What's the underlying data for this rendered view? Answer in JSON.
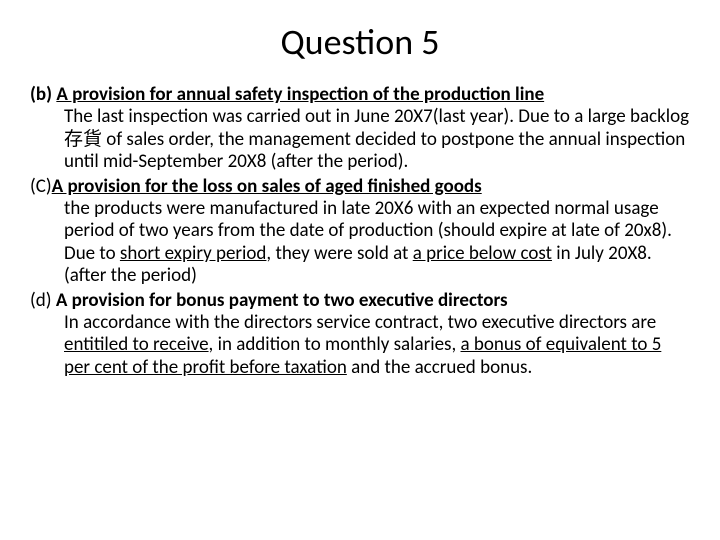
{
  "title": "Question 5",
  "items": {
    "b": {
      "label": "(b) ",
      "heading": "A provision for annual safety inspection of the production line",
      "rest1": "The last inspection was carried out in June 20X7(last year). Due to a large backlog存貨 of sales order, the management decided to postpone the annual inspection until mid-September 20X8 (after the period)."
    },
    "c": {
      "label": "(C)",
      "heading": "A provision for the loss on sales of aged finished goods",
      "rest1": "the products were manufactured in late 20X6 with an expected normal usage period of two years from the date of production (should expire at late of 20x8). Due to ",
      "u1": "short expiry period",
      "rest2": ", they were sold at ",
      "u2": "a price below cost",
      "rest3": " in July 20X8. (after the period)"
    },
    "d": {
      "label": "(d) ",
      "heading": "A provision for bonus payment to two executive directors",
      "rest1": "In accordance with the directors service contract, two executive directors are ",
      "u1": "entitiled to receive",
      "rest2": ", in addition to monthly salaries, ",
      "u2": "a bonus of equivalent to 5 per cent of the profit before taxation",
      "rest3": " and the accrued bonus."
    }
  }
}
